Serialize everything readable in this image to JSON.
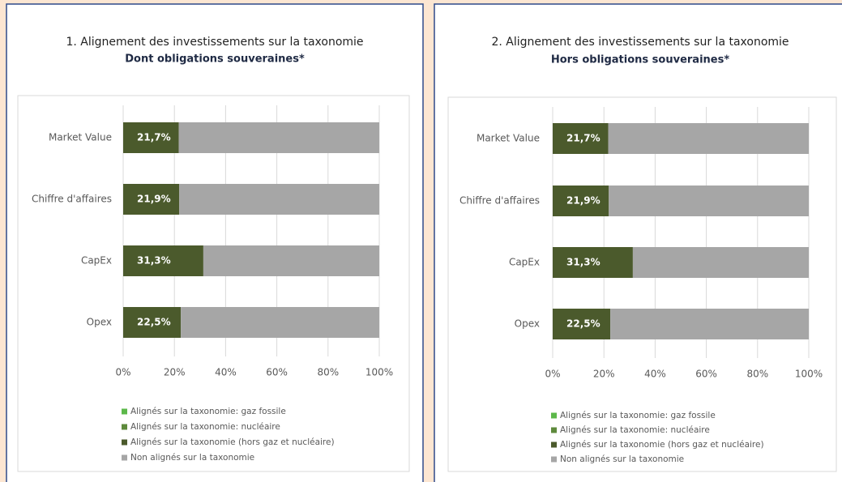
{
  "chart_data": [
    {
      "type": "stacked-bar-horizontal",
      "title": "1. Alignement des investissements sur la taxonomie",
      "subtitle": "Dont obligations souveraines*",
      "categories": [
        "Market Value",
        "Chiffre d'affaires",
        "CapEx",
        "Opex"
      ],
      "series": [
        {
          "name": "Alignés sur la taxonomie: gaz fossile",
          "color": "#5cb84a",
          "values": [
            0,
            0,
            0,
            0
          ]
        },
        {
          "name": "Alignés sur la taxonomie: nucléaire",
          "color": "#5e8a3c",
          "values": [
            0,
            0,
            0,
            0
          ]
        },
        {
          "name": "Alignés sur la taxonomie (hors gaz et nucléaire)",
          "color": "#4b5a2c",
          "values": [
            21.7,
            21.9,
            31.3,
            22.5
          ],
          "value_labels": [
            "21,7%",
            "21,9%",
            "31,3%",
            "22,5%"
          ]
        },
        {
          "name": "Non alignés sur la taxonomie",
          "color": "#a6a6a6",
          "values": [
            78.3,
            78.1,
            68.7,
            77.5
          ]
        }
      ],
      "xlim": [
        0,
        100
      ],
      "xticks": [
        {
          "value": 0,
          "label": "0%"
        },
        {
          "value": 20,
          "label": "20%"
        },
        {
          "value": 40,
          "label": "40%"
        },
        {
          "value": 60,
          "label": "60%"
        },
        {
          "value": 80,
          "label": "80%"
        },
        {
          "value": 100,
          "label": "100%"
        }
      ],
      "grid": true
    },
    {
      "type": "stacked-bar-horizontal",
      "title": "2. Alignement des investissements sur la taxonomie",
      "subtitle": "Hors obligations souveraines*",
      "categories": [
        "Market Value",
        "Chiffre d'affaires",
        "CapEx",
        "Opex"
      ],
      "series": [
        {
          "name": "Alignés sur la taxonomie: gaz fossile",
          "color": "#5cb84a",
          "values": [
            0,
            0,
            0,
            0
          ]
        },
        {
          "name": "Alignés sur la taxonomie: nucléaire",
          "color": "#5e8a3c",
          "values": [
            0,
            0,
            0,
            0
          ]
        },
        {
          "name": "Alignés sur la taxonomie (hors gaz et nucléaire)",
          "color": "#4b5a2c",
          "values": [
            21.7,
            21.9,
            31.3,
            22.5
          ],
          "value_labels": [
            "21,7%",
            "21,9%",
            "31,3%",
            "22,5%"
          ]
        },
        {
          "name": "Non alignés sur la taxonomie",
          "color": "#a6a6a6",
          "values": [
            78.3,
            78.1,
            68.7,
            77.5
          ]
        }
      ],
      "xlim": [
        0,
        100
      ],
      "xticks": [
        {
          "value": 0,
          "label": "0%"
        },
        {
          "value": 20,
          "label": "20%"
        },
        {
          "value": 40,
          "label": "40%"
        },
        {
          "value": 60,
          "label": "60%"
        },
        {
          "value": 80,
          "label": "80%"
        },
        {
          "value": 100,
          "label": "100%"
        }
      ],
      "grid": true
    }
  ]
}
